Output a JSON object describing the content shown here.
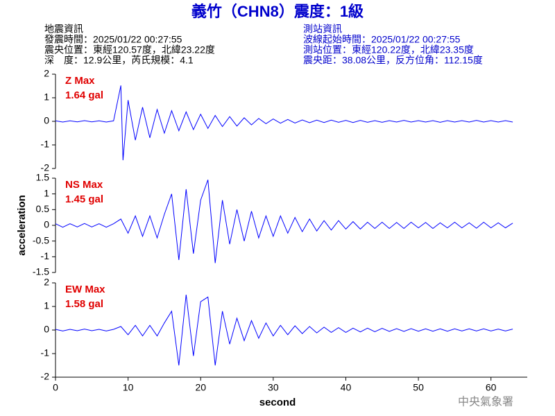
{
  "header": {
    "title": "義竹（CHN8）震度：1級",
    "left": [
      "地震資訊",
      "發震時間：2025/01/22 00:27:55",
      "震央位置：東經120.57度，北緯23.22度",
      "深　度：12.9公里，芮氏規模：4.1"
    ],
    "right": [
      "測站資訊",
      "波線起始時間：2025/01/22 00:27:55",
      "測站位置：東經120.22度，北緯23.35度",
      "震央距：38.08公里，反方位角：112.15度"
    ]
  },
  "footer": "中央氣象署",
  "chart_data": [
    {
      "type": "line",
      "annotations": [
        "Z Max",
        "1.64 gal"
      ],
      "color": "#0000ff",
      "xlim": [
        0,
        65
      ],
      "ylim": [
        -2,
        2
      ],
      "yticks": [
        -2,
        -1,
        0,
        1,
        2
      ],
      "x": [
        0,
        1,
        2,
        3,
        4,
        5,
        6,
        7,
        8,
        9,
        9.3,
        10,
        11,
        12,
        13,
        14,
        15,
        16,
        17,
        18,
        19,
        20,
        21,
        22,
        23,
        24,
        25,
        26,
        27,
        28,
        29,
        30,
        31,
        32,
        33,
        34,
        35,
        36,
        37,
        38,
        39,
        40,
        41,
        42,
        43,
        44,
        45,
        46,
        47,
        48,
        49,
        50,
        51,
        52,
        53,
        54,
        55,
        56,
        57,
        58,
        59,
        60,
        61,
        62,
        63
      ],
      "values": [
        0.02,
        -0.03,
        0.02,
        -0.02,
        0.03,
        -0.02,
        0.02,
        -0.03,
        0.02,
        1.52,
        -1.65,
        0.9,
        -0.8,
        0.6,
        -0.7,
        0.5,
        -0.5,
        0.45,
        -0.4,
        0.4,
        -0.35,
        0.3,
        -0.3,
        0.25,
        -0.22,
        0.2,
        -0.2,
        0.15,
        -0.15,
        0.12,
        -0.1,
        0.1,
        -0.08,
        0.08,
        -0.07,
        0.06,
        -0.06,
        0.05,
        -0.05,
        0.05,
        -0.04,
        0.04,
        -0.05,
        0.04,
        -0.04,
        0.03,
        -0.04,
        0.03,
        -0.03,
        0.04,
        -0.03,
        0.03,
        -0.03,
        0.03,
        -0.04,
        0.03,
        -0.03,
        0.03,
        -0.03,
        0.04,
        -0.03,
        0.03,
        -0.03,
        0.03,
        -0.03
      ]
    },
    {
      "type": "line",
      "annotations": [
        "NS Max",
        "1.45 gal"
      ],
      "ylabel": "acceleration",
      "color": "#0000ff",
      "xlim": [
        0,
        65
      ],
      "ylim": [
        -1.5,
        1.5
      ],
      "yticks": [
        -1.5,
        -1,
        -0.5,
        0,
        0.5,
        1,
        1.5
      ],
      "x": [
        0,
        1,
        2,
        3,
        4,
        5,
        6,
        7,
        8,
        9,
        10,
        11,
        12,
        13,
        14,
        15,
        16,
        17,
        18,
        19,
        20,
        21,
        22,
        23,
        24,
        25,
        26,
        27,
        28,
        29,
        30,
        31,
        32,
        33,
        34,
        35,
        36,
        37,
        38,
        39,
        40,
        41,
        42,
        43,
        44,
        45,
        46,
        47,
        48,
        49,
        50,
        51,
        52,
        53,
        54,
        55,
        56,
        57,
        58,
        59,
        60,
        61,
        62,
        63
      ],
      "values": [
        0.05,
        -0.06,
        0.05,
        -0.05,
        0.06,
        -0.05,
        0.05,
        -0.06,
        0.05,
        0.2,
        -0.25,
        0.3,
        -0.35,
        0.3,
        -0.4,
        0.35,
        1.0,
        -1.1,
        1.15,
        -0.9,
        0.8,
        1.45,
        -1.2,
        0.8,
        -0.6,
        0.5,
        -0.5,
        0.45,
        -0.4,
        0.3,
        -0.35,
        0.3,
        -0.25,
        0.25,
        -0.2,
        0.2,
        -0.18,
        0.15,
        -0.15,
        0.15,
        -0.12,
        0.12,
        -0.12,
        0.1,
        -0.1,
        0.1,
        -0.1,
        0.09,
        -0.1,
        0.1,
        -0.08,
        0.09,
        -0.1,
        0.08,
        -0.08,
        0.1,
        -0.08,
        0.08,
        -0.09,
        0.1,
        -0.08,
        0.08,
        -0.08,
        0.07
      ]
    },
    {
      "type": "line",
      "annotations": [
        "EW Max",
        "1.58 gal"
      ],
      "xlabel": "second",
      "color": "#0000ff",
      "xlim": [
        0,
        65
      ],
      "ylim": [
        -2,
        2
      ],
      "yticks": [
        -2,
        -1,
        0,
        1,
        2
      ],
      "xticks": [
        0,
        10,
        20,
        30,
        40,
        50,
        60
      ],
      "x": [
        0,
        1,
        2,
        3,
        4,
        5,
        6,
        7,
        8,
        9,
        10,
        11,
        12,
        13,
        14,
        15,
        16,
        17,
        18,
        19,
        20,
        21,
        22,
        23,
        24,
        25,
        26,
        27,
        28,
        29,
        30,
        31,
        32,
        33,
        34,
        35,
        36,
        37,
        38,
        39,
        40,
        41,
        42,
        43,
        44,
        45,
        46,
        47,
        48,
        49,
        50,
        51,
        52,
        53,
        54,
        55,
        56,
        57,
        58,
        59,
        60,
        61,
        62,
        63
      ],
      "values": [
        0.03,
        -0.04,
        0.03,
        -0.03,
        0.04,
        -0.03,
        0.03,
        -0.04,
        0.03,
        0.15,
        -0.2,
        0.2,
        -0.25,
        0.2,
        -0.25,
        0.3,
        0.8,
        -1.5,
        1.5,
        -1.1,
        1.2,
        1.4,
        -1.5,
        0.8,
        -0.6,
        0.5,
        -0.45,
        0.4,
        -0.35,
        0.3,
        -0.25,
        0.2,
        -0.2,
        0.18,
        -0.15,
        0.15,
        -0.12,
        0.12,
        -0.1,
        0.1,
        -0.1,
        0.08,
        -0.08,
        0.08,
        -0.07,
        0.07,
        -0.06,
        0.06,
        -0.06,
        0.06,
        -0.05,
        0.05,
        -0.05,
        0.05,
        -0.05,
        0.05,
        -0.04,
        0.05,
        -0.04,
        0.05,
        -0.04,
        0.04,
        -0.04,
        0.04
      ]
    }
  ]
}
